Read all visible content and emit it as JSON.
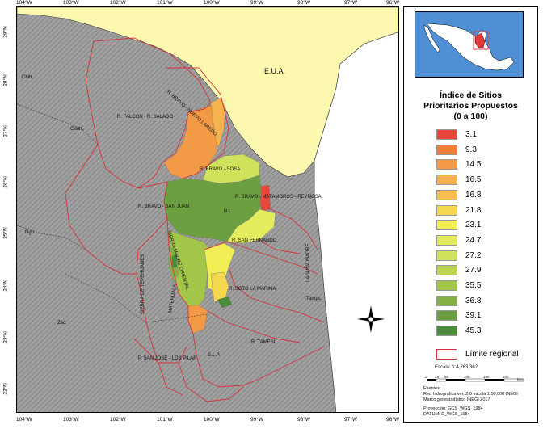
{
  "legend": {
    "title_line1": "Índice de Sitios",
    "title_line2": "Prioritarios Propuestos",
    "title_line3": "(0 a 100)",
    "classes": [
      {
        "value": "3.1",
        "color": "#e8473c"
      },
      {
        "value": "9.3",
        "color": "#ef7d3c"
      },
      {
        "value": "14.5",
        "color": "#f29a46"
      },
      {
        "value": "16.5",
        "color": "#f6b24c"
      },
      {
        "value": "16.8",
        "color": "#f7c04e"
      },
      {
        "value": "21.8",
        "color": "#f4d84f"
      },
      {
        "value": "23.1",
        "color": "#f2ee55"
      },
      {
        "value": "24.7",
        "color": "#e2ec5c"
      },
      {
        "value": "27.2",
        "color": "#d0e25c"
      },
      {
        "value": "27.9",
        "color": "#bcd652"
      },
      {
        "value": "35.5",
        "color": "#a2c54a"
      },
      {
        "value": "36.8",
        "color": "#86b245"
      },
      {
        "value": "39.1",
        "color": "#6c9f3f"
      },
      {
        "value": "45.3",
        "color": "#4c8a3c"
      }
    ],
    "regional_limit_label": "Límite regional",
    "regional_limit_color": "#d8303a",
    "scale_label": "Escala: 1:4,263,362",
    "scale_ticks": [
      "0",
      "25",
      "50",
      "100",
      "150",
      "200"
    ],
    "scale_unit": "Km"
  },
  "sources": {
    "heading": "Fuentes:",
    "line1": "Red hidrográfica ver. 2.0 escala 1:50,000 INEGI",
    "line2": "Marco geoestadístico INEGI 2017",
    "projection": "Proyección: GCS_WGS_1984",
    "datum": "DATUM: D_WGS_1984"
  },
  "axes": {
    "top_labels": [
      "104°W",
      "103°W",
      "102°W",
      "101°W",
      "100°W",
      "99°W",
      "98°W",
      "97°W",
      "96°W"
    ],
    "bottom_labels": [
      "104°W",
      "103°W",
      "102°W",
      "101°W",
      "100°W",
      "99°W",
      "98°W",
      "97°W",
      "96°W"
    ],
    "left_labels": [
      "29°N",
      "28°N",
      "27°N",
      "26°N",
      "25°N",
      "24°N",
      "23°N",
      "22°N"
    ]
  },
  "map_labels": {
    "country": "E.U.A.",
    "bravo_nuevo_laredo": "R. BRAVO - NUEVO LAREDO",
    "falcon_salado": "R. FALCÓN - R. SALADO",
    "bravo_sosa": "R. BRAVO - SOSA",
    "bravo_matamoros": "R. BRAVO - MATAMOROS - REYNOSA",
    "bravo_san_juan": "R. BRAVO - SAN JUAN",
    "nl": "N.L.",
    "san_fernando": "R. SAN FERNANDO",
    "laguna_madre": "LAGUNA MADRE",
    "sierra_madre": "SIERRA MADRE ORIENTAL",
    "sierra_tepehuanes": "SIERRA DE TEPEHUANES",
    "matehuala": "MATEHUALA",
    "soto_la_marina": "R. SOTO LA MARINA",
    "tamesi": "R. TAMESÍ",
    "san_jose": "P. SAN JOSÉ - LOS PILAR",
    "tamaulipas_abbr": "Tamps.",
    "coahuila_abbr": "Coah.",
    "chihuahua_abbr": "Chih.",
    "durango_abbr": "Dgo.",
    "zacatecas_abbr": "Zac.",
    "slp_abbr": "S.L.P."
  },
  "colors": {
    "usa_land": "#fdf8b0",
    "gulf": "#ffffff",
    "terrain": "#9a9a9a",
    "inset_sea": "#4e8fd6",
    "inset_land": "#ffffff",
    "inset_highlight": "#e23a3a"
  },
  "north_arrow_icon": "north-arrow-icon"
}
